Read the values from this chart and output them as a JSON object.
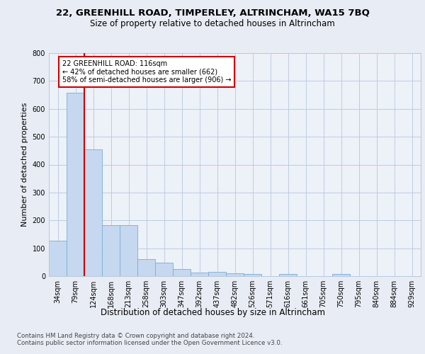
{
  "title1": "22, GREENHILL ROAD, TIMPERLEY, ALTRINCHAM, WA15 7BQ",
  "title2": "Size of property relative to detached houses in Altrincham",
  "xlabel": "Distribution of detached houses by size in Altrincham",
  "ylabel": "Number of detached properties",
  "categories": [
    "34sqm",
    "79sqm",
    "124sqm",
    "168sqm",
    "213sqm",
    "258sqm",
    "303sqm",
    "347sqm",
    "392sqm",
    "437sqm",
    "482sqm",
    "526sqm",
    "571sqm",
    "616sqm",
    "661sqm",
    "705sqm",
    "750sqm",
    "795sqm",
    "840sqm",
    "884sqm",
    "929sqm"
  ],
  "values": [
    128,
    657,
    454,
    182,
    182,
    60,
    47,
    25,
    12,
    14,
    10,
    7,
    0,
    7,
    0,
    0,
    7,
    0,
    0,
    0,
    0
  ],
  "bar_color": "#c5d8ef",
  "bar_edge_color": "#7aadd4",
  "vline_color": "#cc0000",
  "annotation_text": "22 GREENHILL ROAD: 116sqm\n← 42% of detached houses are smaller (662)\n58% of semi-detached houses are larger (906) →",
  "annotation_box_color": "#cc0000",
  "ylim": [
    0,
    800
  ],
  "yticks": [
    0,
    100,
    200,
    300,
    400,
    500,
    600,
    700,
    800
  ],
  "footnote": "Contains HM Land Registry data © Crown copyright and database right 2024.\nContains public sector information licensed under the Open Government Licence v3.0.",
  "bg_color": "#e8edf5",
  "plot_bg_color": "#edf1f8",
  "title_fontsize": 9.5,
  "subtitle_fontsize": 8.5
}
